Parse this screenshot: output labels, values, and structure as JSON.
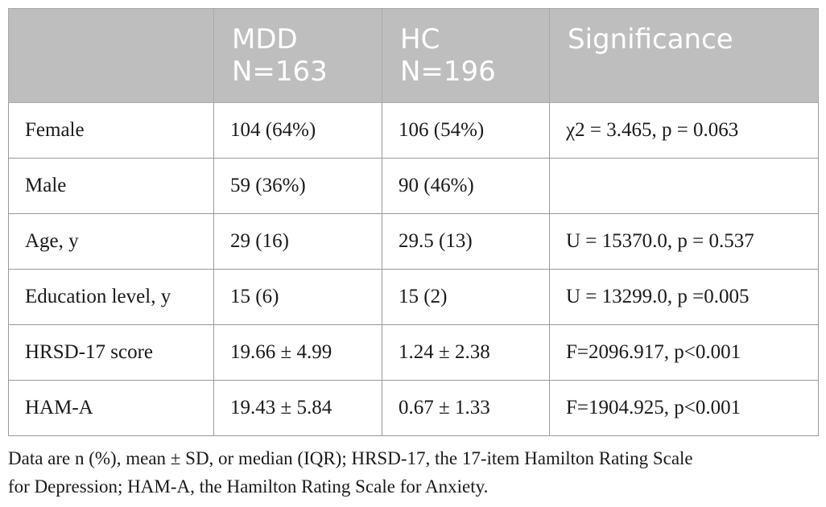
{
  "table": {
    "headers": [
      {
        "line1": "",
        "line2": ""
      },
      {
        "line1": "MDD",
        "line2": "N=163"
      },
      {
        "line1": "HC",
        "line2": "N=196"
      },
      {
        "line1": "Significance",
        "line2": ""
      }
    ],
    "rows": [
      [
        "Female",
        "104 (64%)",
        "106 (54%)",
        "χ2 = 3.465, p = 0.063"
      ],
      [
        "Male",
        "59 (36%)",
        "90 (46%)",
        ""
      ],
      [
        "Age, y",
        "29 (16)",
        "29.5 (13)",
        "U = 15370.0, p = 0.537"
      ],
      [
        "Education level, y",
        "15 (6)",
        "15 (2)",
        "U = 13299.0, p =0.005"
      ],
      [
        "HRSD-17 score",
        "19.66 ± 4.99",
        "1.24 ± 2.38",
        "F=2096.917, p<0.001"
      ],
      [
        "HAM-A",
        "19.43 ± 5.84",
        "0.67 ± 1.33",
        "F=1904.925, p<0.001"
      ]
    ]
  },
  "footnote": {
    "line1": "Data are n (%), mean ± SD, or median (IQR); HRSD-17, the 17-item Hamilton Rating Scale",
    "line2": "for Depression; HAM-A, the Hamilton Rating Scale for Anxiety."
  }
}
